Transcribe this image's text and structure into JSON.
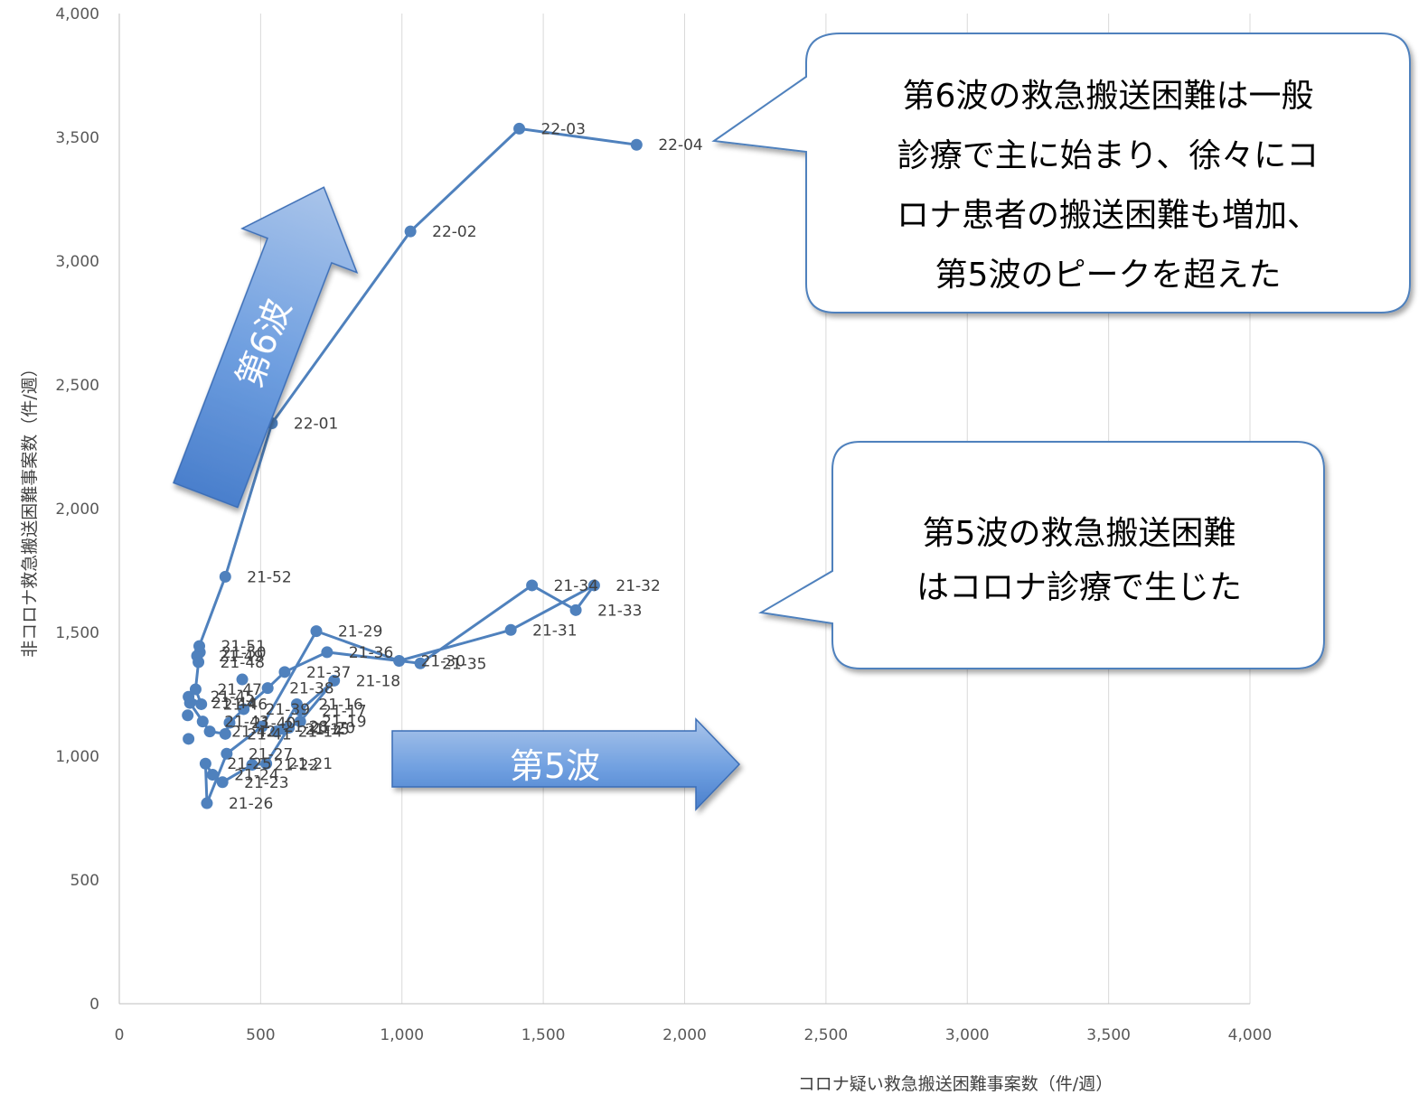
{
  "chart_data": {
    "type": "scatter",
    "xlabel": "コロナ疑い救急搬送困難事案数（件/週）",
    "ylabel": "非コロナ救急搬送困難事案数（件/週）",
    "xlim": [
      0,
      4000
    ],
    "ylim": [
      0,
      4000
    ],
    "x_ticks": [
      "0",
      "500",
      "1,000",
      "1,500",
      "2,000",
      "2,500",
      "3,000",
      "3,500",
      "4,000"
    ],
    "y_ticks": [
      "0",
      "500",
      "1,000",
      "1,500",
      "2,000",
      "2,500",
      "3,000",
      "3,500",
      "4,000"
    ],
    "grid": "vertical",
    "line_color": "#4f81bd",
    "series": [
      {
        "points": [
          {
            "label": "21-14",
            "x": 555,
            "y": 1100
          },
          {
            "label": "21-15",
            "x": 580,
            "y": 1110
          },
          {
            "label": "21-16",
            "x": 628,
            "y": 1210
          },
          {
            "label": "21-17",
            "x": 640,
            "y": 1185
          },
          {
            "label": "21-18",
            "x": 760,
            "y": 1305
          },
          {
            "label": "21-19",
            "x": 640,
            "y": 1140
          },
          {
            "label": "21-20",
            "x": 600,
            "y": 1115
          },
          {
            "label": "21-21",
            "x": 520,
            "y": 970
          },
          {
            "label": "21-22",
            "x": 470,
            "y": 965
          },
          {
            "label": "21-23",
            "x": 365,
            "y": 895
          },
          {
            "label": "21-24",
            "x": 330,
            "y": 925
          },
          {
            "label": "21-25",
            "x": 305,
            "y": 970
          },
          {
            "label": "21-26",
            "x": 310,
            "y": 810
          },
          {
            "label": "21-27",
            "x": 380,
            "y": 1010
          },
          {
            "label": "21-28",
            "x": 505,
            "y": 1120
          },
          {
            "label": "21-29",
            "x": 697,
            "y": 1505
          },
          {
            "label": "21-30",
            "x": 990,
            "y": 1385
          },
          {
            "label": "21-31",
            "x": 1385,
            "y": 1510
          },
          {
            "label": "21-32",
            "x": 1680,
            "y": 1690
          },
          {
            "label": "21-33",
            "x": 1615,
            "y": 1590
          },
          {
            "label": "21-34",
            "x": 1460,
            "y": 1690
          },
          {
            "label": "21-35",
            "x": 1065,
            "y": 1375
          },
          {
            "label": "21-36",
            "x": 735,
            "y": 1420
          },
          {
            "label": "21-37",
            "x": 585,
            "y": 1340
          },
          {
            "label": "21-38",
            "x": 525,
            "y": 1275
          },
          {
            "label": "21-39",
            "x": 440,
            "y": 1190
          },
          {
            "label": "21-40",
            "x": 390,
            "y": 1135
          },
          {
            "label": "21-41",
            "x": 375,
            "y": 1090
          },
          {
            "label": "21-42",
            "x": 320,
            "y": 1100
          },
          {
            "label": "21-43",
            "x": 295,
            "y": 1140
          },
          {
            "label": "21-44",
            "x": 250,
            "y": 1215
          },
          {
            "label": "21-45",
            "x": 245,
            "y": 1240
          },
          {
            "label": "21-46",
            "x": 290,
            "y": 1210
          },
          {
            "label": "21-47",
            "x": 270,
            "y": 1270
          },
          {
            "label": "21-48",
            "x": 280,
            "y": 1380
          },
          {
            "label": "21-49",
            "x": 275,
            "y": 1405
          },
          {
            "label": "21-50",
            "x": 285,
            "y": 1420
          },
          {
            "label": "21-51",
            "x": 283,
            "y": 1445
          },
          {
            "label": "21-52",
            "x": 375,
            "y": 1725
          },
          {
            "label": "22-01",
            "x": 540,
            "y": 2345
          },
          {
            "label": "22-02",
            "x": 1030,
            "y": 3120
          },
          {
            "label": "22-03",
            "x": 1415,
            "y": 3535
          },
          {
            "label": "22-04",
            "x": 1830,
            "y": 3470
          }
        ]
      }
    ],
    "extra_points": [
      {
        "x": 245,
        "y": 1070
      },
      {
        "x": 242,
        "y": 1165
      },
      {
        "x": 435,
        "y": 1310
      }
    ]
  },
  "annotations": {
    "wave6_arrow": "第6波",
    "wave5_arrow": "第5波",
    "callout_wave6": [
      "第6波の救急搬送困難は一般",
      "診療で主に始まり、徐々にコ",
      "ロナ患者の搬送困難も増加、",
      "第5波のピークを超えた"
    ],
    "callout_wave5": [
      "第5波の救急搬送困難",
      "はコロナ診療で生じた"
    ]
  }
}
